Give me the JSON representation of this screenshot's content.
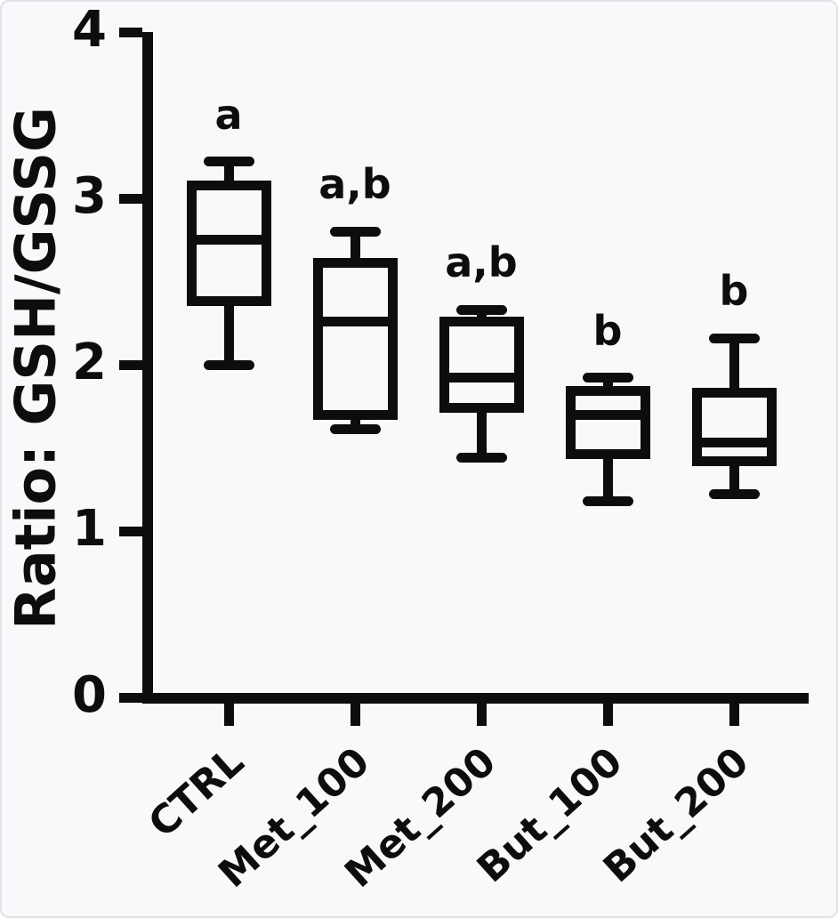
{
  "frame": {
    "background": "#f8f9fb",
    "border_color": "#e1e2e6",
    "ink_color": "#0d0d0d"
  },
  "chart_data": {
    "type": "box",
    "title": "",
    "xlabel": "",
    "ylabel": "Ratio: GSH/GSSG",
    "ylim": [
      0,
      4
    ],
    "yticks": [
      0,
      1,
      2,
      3,
      4
    ],
    "grid": false,
    "legend": null,
    "categories": [
      "CTRL",
      "Met_100",
      "Met_200",
      "But_100",
      "But_200"
    ],
    "series": [
      {
        "category": "CTRL",
        "whisker_low": 2.0,
        "q1": 2.38,
        "median": 2.75,
        "q3": 3.08,
        "whisker_high": 3.22,
        "annotation": "a"
      },
      {
        "category": "Met_100",
        "whisker_low": 1.61,
        "q1": 1.7,
        "median": 2.26,
        "q3": 2.61,
        "whisker_high": 2.8,
        "annotation": "a,b"
      },
      {
        "category": "Met_200",
        "whisker_low": 1.44,
        "q1": 1.74,
        "median": 1.92,
        "q3": 2.26,
        "whisker_high": 2.33,
        "annotation": "a,b"
      },
      {
        "category": "But_100",
        "whisker_low": 1.18,
        "q1": 1.46,
        "median": 1.7,
        "q3": 1.84,
        "whisker_high": 1.92,
        "annotation": "b"
      },
      {
        "category": "But_200",
        "whisker_low": 1.22,
        "q1": 1.42,
        "median": 1.53,
        "q3": 1.83,
        "whisker_high": 2.16,
        "annotation": "b"
      }
    ]
  }
}
